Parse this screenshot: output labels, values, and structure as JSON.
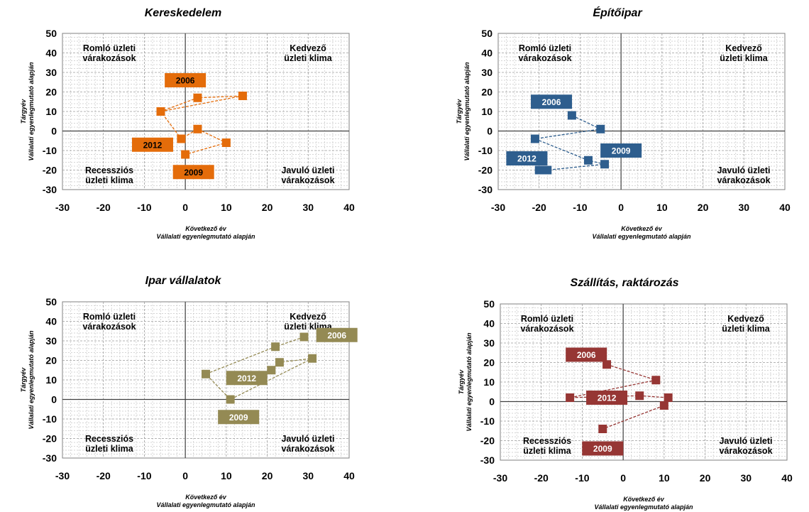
{
  "chart_data": [
    {
      "type": "scatter",
      "title": "Kereskedelem",
      "xlabel_line1": "Következő év",
      "xlabel_line2": "Vállalati egyenlegmutató  alapján",
      "ylabel_line1": "Tárgyév",
      "ylabel_line2": "Vállalati egyenlegmutató  alapján",
      "xlim": [
        -30,
        40
      ],
      "ylim": [
        -30,
        50
      ],
      "xticks": [
        -30,
        -20,
        -10,
        0,
        10,
        20,
        30,
        40
      ],
      "yticks": [
        -30,
        -20,
        -10,
        0,
        10,
        20,
        30,
        40,
        50
      ],
      "color": "#E46C0A",
      "label_text_color": "#000000",
      "points": [
        {
          "x": -6,
          "y": 10
        },
        {
          "x": 14,
          "y": 18
        },
        {
          "x": 3,
          "y": 17
        },
        {
          "x": -6,
          "y": 10
        },
        {
          "x": -1,
          "y": -4
        },
        {
          "x": 3,
          "y": 1
        },
        {
          "x": 10,
          "y": -6
        },
        {
          "x": 0,
          "y": -12
        }
      ],
      "year_labels": [
        {
          "text": "2006",
          "x": 0,
          "y": 26
        },
        {
          "text": "2012",
          "x": -8,
          "y": -7
        },
        {
          "text": "2009",
          "x": 2,
          "y": -21
        }
      ],
      "quadrants": {
        "top_left": [
          "Romló üzleti",
          "várakozások"
        ],
        "top_right": [
          "Kedvező",
          "üzleti klima"
        ],
        "bottom_left": [
          "Recessziós",
          "üzleti klima"
        ],
        "bottom_right": [
          "Javuló üzleti",
          "várakozások"
        ]
      }
    },
    {
      "type": "scatter",
      "title": "Építőipar",
      "xlabel_line1": "Következő év",
      "xlabel_line2": "Vállalati egyenlegmutató  alapján",
      "ylabel_line1": "Tárgyév",
      "ylabel_line2": "Vállalati egyenlegmutató  alapján",
      "xlim": [
        -30,
        40
      ],
      "ylim": [
        -30,
        50
      ],
      "xticks": [
        -30,
        -20,
        -10,
        0,
        10,
        20,
        30,
        40
      ],
      "yticks": [
        -30,
        -20,
        -10,
        0,
        10,
        20,
        30,
        40,
        50
      ],
      "color": "#2E5E8E",
      "label_text_color": "#ffffff",
      "points": [
        {
          "x": -12,
          "y": 8
        },
        {
          "x": -5,
          "y": 1
        },
        {
          "x": -21,
          "y": -4
        },
        {
          "x": -8,
          "y": -15
        },
        {
          "x": -4,
          "y": -17
        },
        {
          "x": -18,
          "y": -20
        },
        {
          "x": -20,
          "y": -20
        }
      ],
      "year_labels": [
        {
          "text": "2006",
          "x": -17,
          "y": 15
        },
        {
          "text": "2012",
          "x": -23,
          "y": -14
        },
        {
          "text": "2009",
          "x": 0,
          "y": -10
        }
      ],
      "quadrants": {
        "top_left": [
          "Romló üzleti",
          "várakozások"
        ],
        "top_right": [
          "Kedvező",
          "üzleti klima"
        ],
        "bottom_left": [
          "",
          ""
        ],
        "bottom_right": [
          "Javuló üzleti",
          "várakozások"
        ]
      }
    },
    {
      "type": "scatter",
      "title": "Ipar vállalatok",
      "xlabel_line1": "Következő év",
      "xlabel_line2": "Vállalati egyenlegmutató  alapján",
      "ylabel_line1": "Tárgyév",
      "ylabel_line2": "Vállalati egyenlegmutató  alapján",
      "xlim": [
        -30,
        40
      ],
      "ylim": [
        -30,
        50
      ],
      "xticks": [
        -30,
        -20,
        -10,
        0,
        10,
        20,
        30,
        40
      ],
      "yticks": [
        -30,
        -20,
        -10,
        0,
        10,
        20,
        30,
        40,
        50
      ],
      "color": "#948A54",
      "label_text_color": "#ffffff",
      "points": [
        {
          "x": 29,
          "y": 32
        },
        {
          "x": 22,
          "y": 27
        },
        {
          "x": 5,
          "y": 13
        },
        {
          "x": 11,
          "y": 0
        },
        {
          "x": 31,
          "y": 21
        },
        {
          "x": 23,
          "y": 19
        },
        {
          "x": 21,
          "y": 15
        }
      ],
      "year_labels": [
        {
          "text": "2006",
          "x": 37,
          "y": 33
        },
        {
          "text": "2012",
          "x": 15,
          "y": 11
        },
        {
          "text": "2009",
          "x": 13,
          "y": -9
        }
      ],
      "quadrants": {
        "top_left": [
          "Romló üzleti",
          "várakozások"
        ],
        "top_right": [
          "Kedvező",
          "üzleti klima"
        ],
        "bottom_left": [
          "Recessziós",
          "üzleti klima"
        ],
        "bottom_right": [
          "Javuló üzleti",
          "várakozások"
        ]
      }
    },
    {
      "type": "scatter",
      "title": "Szállítás, raktározás",
      "xlabel_line1": "Következő év",
      "xlabel_line2": "Vállalati egyenlegmutató  alapján",
      "ylabel_line1": "Tárgyév",
      "ylabel_line2": "Vállalati egyenlegmutató  alapján",
      "xlim": [
        -30,
        40
      ],
      "ylim": [
        -30,
        50
      ],
      "xticks": [
        -30,
        -20,
        -10,
        0,
        10,
        20,
        30,
        40
      ],
      "yticks": [
        -30,
        -20,
        -10,
        0,
        10,
        20,
        30,
        40,
        50
      ],
      "color": "#963634",
      "label_text_color": "#ffffff",
      "points": [
        {
          "x": -4,
          "y": 19
        },
        {
          "x": 8,
          "y": 11
        },
        {
          "x": -13,
          "y": 2
        },
        {
          "x": 4,
          "y": 3
        },
        {
          "x": 11,
          "y": 2
        },
        {
          "x": 10,
          "y": -2
        },
        {
          "x": -5,
          "y": -14
        }
      ],
      "year_labels": [
        {
          "text": "2006",
          "x": -9,
          "y": 24
        },
        {
          "text": "2012",
          "x": -4,
          "y": 2
        },
        {
          "text": "2009",
          "x": -5,
          "y": -24
        }
      ],
      "quadrants": {
        "top_left": [
          "Romló üzleti",
          "várakozások"
        ],
        "top_right": [
          "Kedvező",
          "üzleti klima"
        ],
        "bottom_left": [
          "Recessziós",
          "üzleti klima"
        ],
        "bottom_right": [
          "Javuló üzleti",
          "várakozások"
        ]
      }
    }
  ]
}
